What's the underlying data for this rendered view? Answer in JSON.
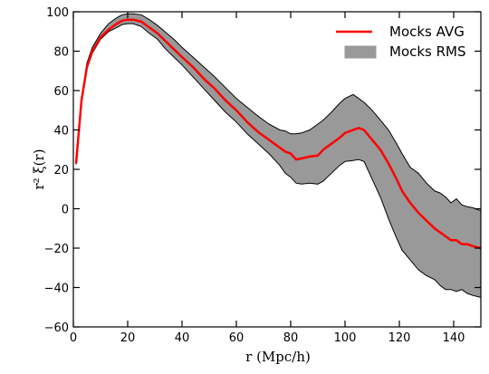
{
  "chart_data": {
    "type": "line",
    "xlabel": "r (Mpc/h)",
    "ylabel": "r² ξ(r)",
    "xlim": [
      0,
      150
    ],
    "ylim": [
      -60,
      100
    ],
    "xticks": [
      0,
      20,
      40,
      60,
      80,
      100,
      120,
      140
    ],
    "yticks": [
      -60,
      -40,
      -20,
      0,
      20,
      40,
      60,
      80,
      100
    ],
    "xtick_labels": [
      "0",
      "20",
      "40",
      "60",
      "80",
      "100",
      "120",
      "140"
    ],
    "ytick_labels": [
      "−60",
      "−40",
      "−20",
      "0",
      "20",
      "40",
      "60",
      "80",
      "100"
    ],
    "grid": false,
    "legend_position": "top-right",
    "x": [
      1,
      3,
      5,
      7,
      10,
      13,
      16,
      18,
      20,
      22,
      25,
      28,
      31,
      34,
      37,
      40,
      44,
      48,
      52,
      56,
      60,
      64,
      68,
      72,
      76,
      78,
      80,
      82,
      84,
      87,
      90,
      92,
      95,
      98,
      100,
      103,
      105,
      107,
      110,
      113,
      116,
      119,
      121,
      124,
      127,
      130,
      133,
      135,
      137,
      139,
      141,
      143,
      145,
      147,
      150
    ],
    "series": [
      {
        "name": "Mocks AVG",
        "color": "#ff0000",
        "values": [
          23,
          55,
          72,
          80,
          87,
          91,
          94,
          95.5,
          96,
          96,
          95,
          92,
          89,
          85,
          81,
          77,
          72,
          66,
          61,
          55,
          50,
          44,
          39,
          35,
          31,
          29,
          28,
          25,
          25.5,
          26.5,
          27,
          30,
          33,
          36,
          38.5,
          40,
          41,
          40,
          35,
          30,
          23,
          15,
          9,
          3,
          -2,
          -6,
          -10,
          -12,
          -14,
          -16,
          -16,
          -18,
          -18,
          -19,
          -20
        ]
      },
      {
        "name": "Mocks RMS",
        "color": "#999999",
        "type": "band",
        "upper": [
          23.5,
          56,
          74,
          82,
          89,
          94,
          97,
          98.5,
          99,
          99,
          98.5,
          96,
          93,
          89.5,
          86,
          82,
          77,
          72,
          67,
          61.5,
          56,
          51.5,
          47,
          43,
          40,
          39.5,
          38,
          38,
          38.5,
          40,
          43,
          45,
          49,
          53.5,
          56,
          58,
          56,
          54,
          50,
          45,
          40,
          33,
          28,
          21,
          18,
          13,
          9,
          8,
          6,
          3,
          5,
          2,
          1,
          0.5,
          -1
        ],
        "lower": [
          22.5,
          54,
          71,
          79,
          86,
          90,
          92,
          93.5,
          94,
          94,
          92.5,
          89,
          86,
          81,
          77,
          73,
          67,
          61,
          55,
          49,
          44,
          38,
          33,
          28,
          22,
          18,
          16,
          13,
          12.5,
          13,
          12.5,
          14,
          18,
          22,
          24,
          24.5,
          25,
          24,
          15,
          6,
          -5,
          -15,
          -21,
          -26,
          -31,
          -34,
          -36,
          -39,
          -41,
          -41,
          -42,
          -41,
          -43,
          -44,
          -45
        ]
      }
    ]
  }
}
